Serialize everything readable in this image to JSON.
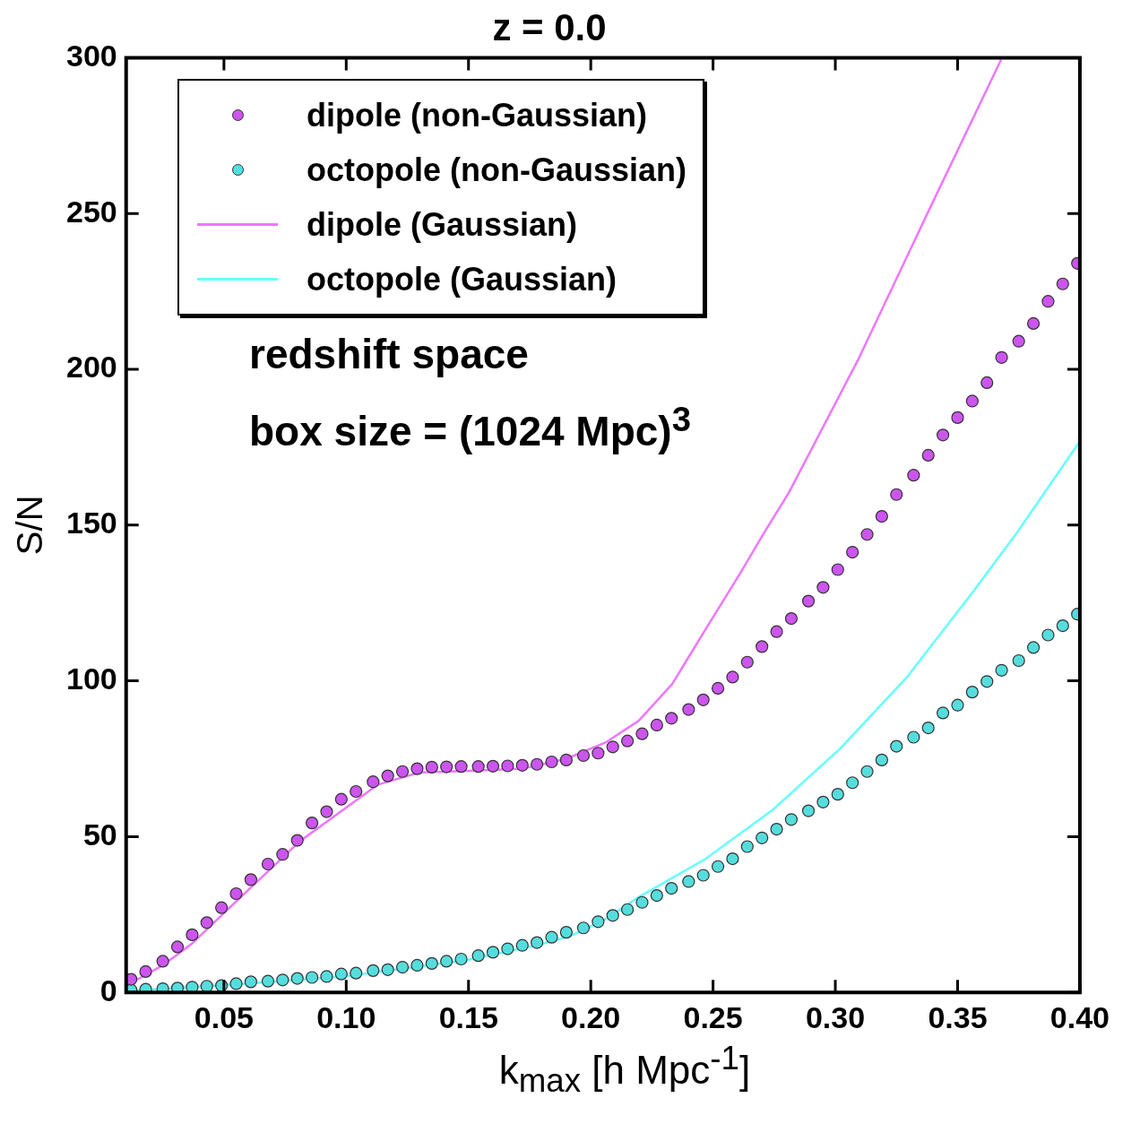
{
  "chart_data": {
    "type": "line",
    "title": "z = 0.0",
    "xlabel": "k$_{max}$ [h Mpc$^{-1}$]",
    "ylabel": "S/N",
    "annotations": [
      "redshift space",
      "box size = (1024 Mpc)$^{3}$"
    ],
    "xlim": [
      0.01,
      0.4
    ],
    "xticks": [
      {
        "value": 0.05,
        "label": "0.05"
      },
      {
        "value": 0.1,
        "label": "0.10"
      },
      {
        "value": 0.15,
        "label": "0.15"
      },
      {
        "value": 0.2,
        "label": "0.20"
      },
      {
        "value": 0.25,
        "label": "0.25"
      },
      {
        "value": 0.3,
        "label": "0.30"
      },
      {
        "value": 0.35,
        "label": "0.35"
      },
      {
        "value": 0.4,
        "label": "0.40"
      }
    ],
    "ylim": [
      0,
      300
    ],
    "yticks": [
      0,
      50,
      100,
      150,
      200,
      250,
      300
    ],
    "grid": false,
    "legend": "top left",
    "series": [
      {
        "name": "dipole (non-Gaussian)",
        "type": "scatter",
        "marker": "circle",
        "color": "#cc55ee",
        "x": [
          0.012,
          0.018,
          0.025,
          0.031,
          0.037,
          0.043,
          0.049,
          0.055,
          0.061,
          0.068,
          0.074,
          0.08,
          0.086,
          0.092,
          0.098,
          0.104,
          0.111,
          0.117,
          0.123,
          0.129,
          0.135,
          0.141,
          0.147,
          0.154,
          0.16,
          0.166,
          0.172,
          0.178,
          0.184,
          0.19,
          0.197,
          0.203,
          0.209,
          0.215,
          0.221,
          0.227,
          0.233,
          0.24,
          0.246,
          0.252,
          0.258,
          0.264,
          0.27,
          0.276,
          0.282,
          0.289,
          0.295,
          0.301,
          0.307,
          0.313,
          0.319,
          0.325,
          0.332,
          0.338,
          0.344,
          0.35,
          0.356,
          0.362,
          0.368,
          0.375,
          0.381,
          0.387,
          0.393,
          0.399
        ],
        "values": [
          4.2,
          6.7,
          10,
          14.6,
          18.5,
          22.4,
          27.2,
          31.7,
          36.2,
          41.2,
          44.3,
          48.8,
          54.4,
          58,
          62,
          64.5,
          67.6,
          69.5,
          70.9,
          71.8,
          72.3,
          72.4,
          72.5,
          72.5,
          72.6,
          72.7,
          72.9,
          73.2,
          74,
          74.6,
          76,
          76.8,
          78.8,
          80.7,
          83,
          85.8,
          88,
          90.8,
          93.9,
          97.6,
          101.2,
          106,
          111,
          115.8,
          120,
          125.6,
          130,
          135.7,
          141.3,
          147,
          152.8,
          159.8,
          166,
          172.4,
          178.9,
          184.5,
          189.8,
          195.7,
          203.8,
          209,
          214.7,
          221.8,
          227.4,
          234
        ]
      },
      {
        "name": "octopole (non-Gaussian)",
        "type": "scatter",
        "marker": "circle",
        "color": "#55dddd",
        "x": [
          0.012,
          0.018,
          0.025,
          0.031,
          0.037,
          0.043,
          0.049,
          0.055,
          0.061,
          0.068,
          0.074,
          0.08,
          0.086,
          0.092,
          0.098,
          0.104,
          0.111,
          0.117,
          0.123,
          0.129,
          0.135,
          0.141,
          0.147,
          0.154,
          0.16,
          0.166,
          0.172,
          0.178,
          0.184,
          0.19,
          0.197,
          0.203,
          0.209,
          0.215,
          0.221,
          0.227,
          0.233,
          0.24,
          0.246,
          0.252,
          0.258,
          0.264,
          0.27,
          0.276,
          0.282,
          0.289,
          0.295,
          0.301,
          0.307,
          0.313,
          0.319,
          0.325,
          0.332,
          0.338,
          0.344,
          0.35,
          0.356,
          0.362,
          0.368,
          0.375,
          0.381,
          0.387,
          0.393,
          0.399
        ],
        "values": [
          0.8,
          1.0,
          1.2,
          1.4,
          1.7,
          2.0,
          2.2,
          2.8,
          3.4,
          3.6,
          4.0,
          4.5,
          4.8,
          5.1,
          5.9,
          6.2,
          7.0,
          7.3,
          8.1,
          8.7,
          9.3,
          10,
          10.7,
          11.8,
          12.9,
          14,
          15.1,
          16,
          17.7,
          19.3,
          20.7,
          22.7,
          24.7,
          26.6,
          28.9,
          31.1,
          33.4,
          35.6,
          37.6,
          40.4,
          42.9,
          46.8,
          49.6,
          52.4,
          55.5,
          58.3,
          61.1,
          63.6,
          67.3,
          70.9,
          74.6,
          79,
          81.9,
          84.9,
          89.7,
          92.2,
          96.4,
          99.8,
          103.4,
          106.5,
          110.7,
          114.7,
          117.7,
          121.4
        ]
      },
      {
        "name": "dipole (Gaussian)",
        "type": "line",
        "marker": "none",
        "line_style": "solid",
        "color": "#ee77ff",
        "x": [
          0.01,
          0.012,
          0.025,
          0.037,
          0.05,
          0.081,
          0.113,
          0.13,
          0.1526,
          0.172,
          0.19,
          0.206,
          0.2196,
          0.2333,
          0.247,
          0.2607,
          0.271,
          0.281,
          0.3096,
          0.338,
          0.3678
        ],
        "values": [
          2,
          3,
          8.7,
          15.7,
          25.5,
          48.5,
          66.7,
          70.6,
          71.2,
          71.8,
          75,
          80.2,
          87.2,
          99,
          116.6,
          134,
          147.7,
          160.4,
          203.5,
          250.6,
          299.4
        ]
      },
      {
        "name": "octopole (Gaussian)",
        "type": "line",
        "marker": "none",
        "line_style": "solid",
        "color": "#66ffff",
        "x": [
          0.01,
          0.05,
          0.1,
          0.15,
          0.18,
          0.192,
          0.206,
          0.2196,
          0.247,
          0.2744,
          0.3019,
          0.3293,
          0.3567,
          0.3744,
          0.4
        ],
        "values": [
          0.5,
          2.3,
          5.2,
          10.5,
          15.5,
          18.2,
          23.5,
          30.6,
          42.9,
          58.6,
          78.2,
          101.2,
          129,
          147.7,
          176.9
        ]
      }
    ]
  }
}
